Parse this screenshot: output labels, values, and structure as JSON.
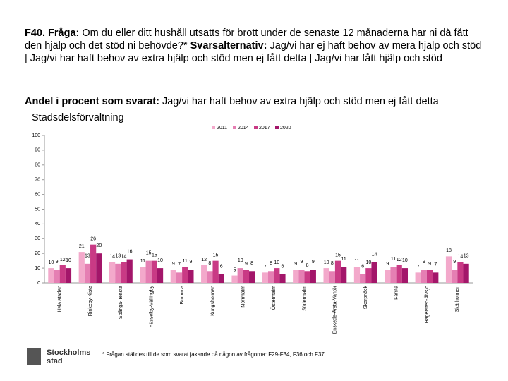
{
  "header": {
    "title": [
      {
        "text": "F40. Fråga:",
        "bold": true
      },
      {
        "text": " Om du eller ditt hushåll utsatts för brott under de senaste 12 månaderna har ni då fått den hjälp och det stöd ni behövde?* ",
        "bold": false
      },
      {
        "text": "Svarsalternativ:",
        "bold": true
      },
      {
        "text": " Jag/vi har ej haft behov av mera hjälp och stöd | Jag/vi har haft behov av extra hjälp och stöd men ej fått detta | Jag/vi har fått hjälp och stöd",
        "bold": false
      }
    ],
    "subtitle": [
      {
        "text": "Andel i procent som svarat:",
        "bold": true
      },
      {
        "text": " Jag/vi har haft behov av extra hjälp och stöd men ej fått detta",
        "bold": false
      }
    ]
  },
  "chart_data": {
    "type": "bar",
    "title": "Stadsdelsförvaltning",
    "categories": [
      "Hela staden",
      "Rinkeby-Kista",
      "Spånga-Tensta",
      "Hässelby-Vällingby",
      "Bromma",
      "Kungsholmen",
      "Norrmalm",
      "Östermalm",
      "Södermalm",
      "Enskede-Årsta-Vantör",
      "Skarpnäck",
      "Farsta",
      "Hägersten-Älvsjö",
      "Skärholmen"
    ],
    "series": [
      {
        "name": "2011",
        "color": "#f3a9cb",
        "values": [
          10,
          21,
          14,
          11,
          9,
          12,
          5,
          7,
          9,
          10,
          11,
          9,
          7,
          18
        ]
      },
      {
        "name": "2014",
        "color": "#e57fb3",
        "values": [
          9,
          13,
          13,
          15,
          7,
          8,
          10,
          8,
          9,
          8,
          6,
          11,
          9,
          9
        ]
      },
      {
        "name": "2017",
        "color": "#c93a85",
        "values": [
          12,
          26,
          14,
          15,
          11,
          15,
          9,
          10,
          8,
          15,
          10,
          12,
          9,
          14
        ]
      },
      {
        "name": "2020",
        "color": "#a3166a",
        "values": [
          10,
          20,
          16,
          10,
          9,
          6,
          8,
          6,
          9,
          11,
          14,
          10,
          7,
          13
        ]
      }
    ],
    "ylim": [
      0,
      100
    ],
    "yticks": [
      0,
      10,
      20,
      30,
      40,
      50,
      60,
      70,
      80,
      90,
      100
    ],
    "grid": false,
    "legend": "top"
  },
  "footnote": "* Frågan ställdes till de som svarat jakande på någon av frågorna: F29-F34, F36 och F37.",
  "logo": {
    "line1": "Stockholms",
    "line2": "stad"
  }
}
